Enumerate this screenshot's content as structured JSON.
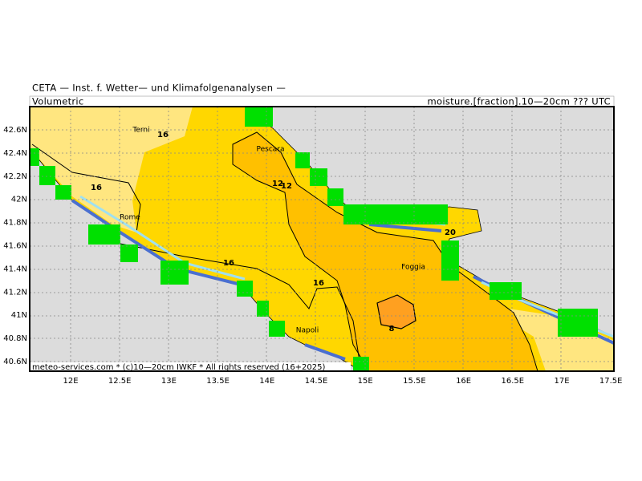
{
  "header": {
    "title": "CETA — Inst. f. Wetter— und Klimafolgenanalysen —"
  },
  "panel": {
    "left": "Volumetric",
    "right": "moisture.[fraction].10—20cm ??? UTC"
  },
  "footer": "meteo-services.com * (c)10—20cm IWKF * All rights reserved (16+2025)",
  "axes": {
    "lat_labels": [
      "42.6N",
      "42.4N",
      "42.2N",
      "42N",
      "41.8N",
      "41.6N",
      "41.4N",
      "41.2N",
      "41N",
      "40.8N",
      "40.6N"
    ],
    "lon_labels": [
      "12E",
      "12.5E",
      "13E",
      "13.5E",
      "14E",
      "14.5E",
      "15E",
      "15.5E",
      "16E",
      "16.5E",
      "17E",
      "17.5E"
    ]
  },
  "places": [
    "Terni",
    "Pescara",
    "Rome",
    "Foggia",
    "Napoli"
  ],
  "contour_labels": [
    "16",
    "16",
    "12",
    "12",
    "16",
    "16",
    "20",
    "8"
  ]
}
